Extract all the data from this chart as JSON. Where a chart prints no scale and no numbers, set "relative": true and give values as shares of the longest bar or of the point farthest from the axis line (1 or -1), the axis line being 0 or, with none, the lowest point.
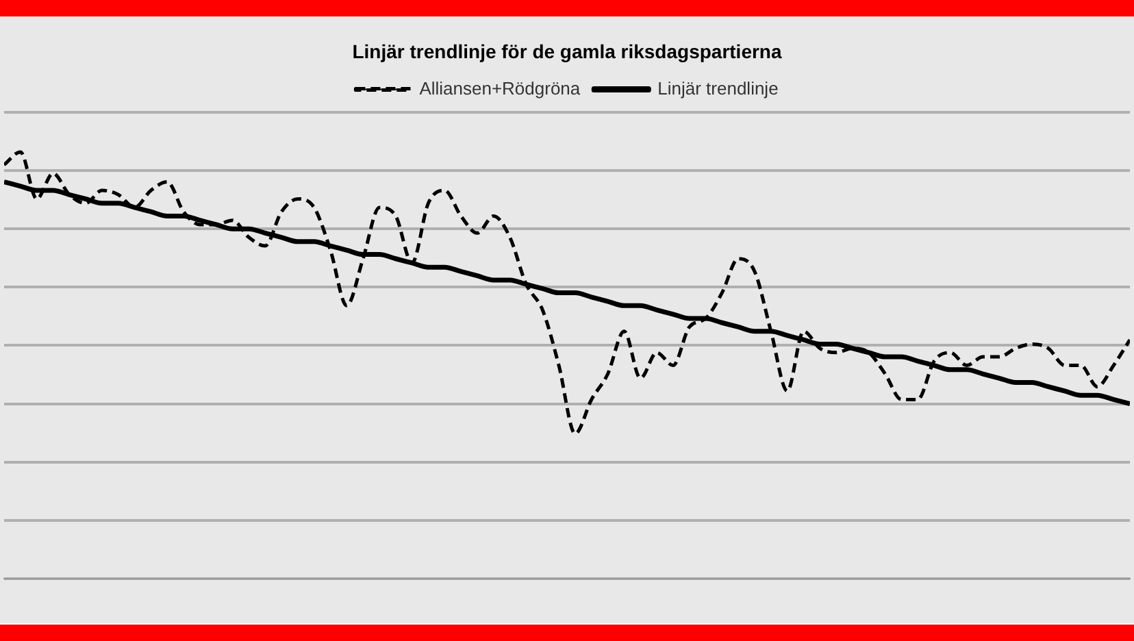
{
  "chart_data": {
    "type": "line",
    "title": "Linjär trendlinje för de gamla riksdagspartierna",
    "relative": true,
    "grid": "y",
    "legend": "top",
    "marker": "none",
    "categories": [
      null,
      null,
      null,
      null,
      null,
      null,
      null,
      null,
      null,
      null,
      null,
      null,
      null,
      null,
      null,
      null,
      null,
      null,
      null,
      null,
      null,
      null,
      null,
      null,
      null,
      null,
      null,
      null,
      null,
      null,
      null,
      null,
      null,
      null,
      null,
      null,
      null,
      null,
      null,
      null,
      null,
      null,
      null,
      null,
      null,
      null,
      null,
      null,
      null,
      null,
      null,
      null,
      null,
      null,
      null,
      null,
      null,
      null,
      null,
      null,
      null,
      null,
      null,
      null,
      null,
      null,
      null,
      null,
      null,
      null
    ],
    "series": [
      {
        "name": "Alliansen+Rödgröna",
        "color": "#000000",
        "line_style": "dashed",
        "values": [
          0.97,
          1,
          0.89,
          0.95,
          0.9,
          0.88,
          0.91,
          0.9,
          0.87,
          0.91,
          0.93,
          0.86,
          0.83,
          0.83,
          0.84,
          0.8,
          0.78,
          0.86,
          0.89,
          0.87,
          0.77,
          0.64,
          0.75,
          0.87,
          0.85,
          0.74,
          0.88,
          0.91,
          0.85,
          0.81,
          0.85,
          0.8,
          0.69,
          0.63,
          0.5,
          0.34,
          0.42,
          0.48,
          0.58,
          0.47,
          0.53,
          0.5,
          0.59,
          0.61,
          0.67,
          0.75,
          0.72,
          0.58,
          0.44,
          0.58,
          0.54,
          0.53,
          0.54,
          0.53,
          0.48,
          0.42,
          0.42,
          0.51,
          0.53,
          0.5,
          0.52,
          0.52,
          0.54,
          0.55,
          0.54,
          0.5,
          0.5,
          0.45,
          0.5,
          0.56
        ]
      },
      {
        "name": "Linjär trendlinje",
        "color": "#000000",
        "line_style": "solid",
        "values": [
          0.93,
          0.92,
          0.91,
          0.91,
          0.9,
          0.89,
          0.88,
          0.88,
          0.87,
          0.86,
          0.85,
          0.85,
          0.84,
          0.83,
          0.82,
          0.82,
          0.81,
          0.8,
          0.79,
          0.79,
          0.78,
          0.77,
          0.76,
          0.76,
          0.75,
          0.74,
          0.73,
          0.73,
          0.72,
          0.71,
          0.7,
          0.7,
          0.69,
          0.68,
          0.67,
          0.67,
          0.66,
          0.65,
          0.64,
          0.64,
          0.63,
          0.62,
          0.61,
          0.61,
          0.6,
          0.59,
          0.58,
          0.58,
          0.57,
          0.56,
          0.55,
          0.55,
          0.54,
          0.53,
          0.52,
          0.52,
          0.51,
          0.5,
          0.49,
          0.49,
          0.48,
          0.47,
          0.46,
          0.46,
          0.45,
          0.44,
          0.43,
          0.43,
          0.42,
          0.41
        ]
      }
    ]
  }
}
